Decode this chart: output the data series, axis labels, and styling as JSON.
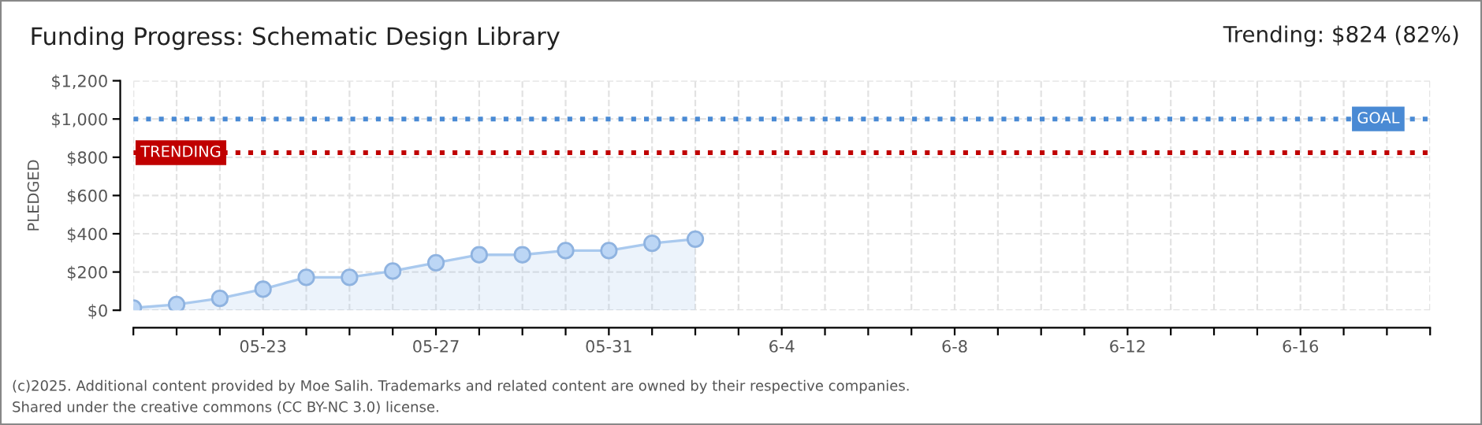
{
  "chart_data": {
    "type": "area",
    "title": "Funding Progress: Schematic Design Library",
    "subtitle": "Trending: $824 (82%)",
    "ylabel": "PLEDGED",
    "annotations": [
      "(c)2025. Additional content provided by Moe Salih. Trademarks and related content are owned by their respective companies.",
      "Shared under the creative commons (CC BY-NC 3.0) license."
    ],
    "x": [
      "2025-05-20",
      "2025-05-21",
      "2025-05-22",
      "2025-05-23",
      "2025-05-24",
      "2025-05-25",
      "2025-05-26",
      "2025-05-27",
      "2025-05-28",
      "2025-05-29",
      "2025-05-30",
      "2025-05-31",
      "2025-06-01",
      "2025-06-02"
    ],
    "series": [
      {
        "color": "#a9c9ee",
        "values": [
          12,
          30,
          62,
          110,
          172,
          172,
          205,
          248,
          290,
          290,
          312,
          312,
          350,
          372
        ]
      }
    ],
    "marker": "circle",
    "xlim": [
      "2025-05-20",
      "2025-06-19"
    ],
    "xticks": [
      {
        "value": "2025-05-20",
        "label": null
      },
      {
        "value": "2025-05-21",
        "label": null
      },
      {
        "value": "2025-05-22",
        "label": null
      },
      {
        "value": "2025-05-23",
        "label": "05-23"
      },
      {
        "value": "2025-05-24",
        "label": null
      },
      {
        "value": "2025-05-25",
        "label": null
      },
      {
        "value": "2025-05-26",
        "label": null
      },
      {
        "value": "2025-05-27",
        "label": "05-27"
      },
      {
        "value": "2025-05-28",
        "label": null
      },
      {
        "value": "2025-05-29",
        "label": null
      },
      {
        "value": "2025-05-30",
        "label": null
      },
      {
        "value": "2025-05-31",
        "label": "05-31"
      },
      {
        "value": "2025-06-01",
        "label": null
      },
      {
        "value": "2025-06-02",
        "label": null
      },
      {
        "value": "2025-06-03",
        "label": null
      },
      {
        "value": "2025-06-04",
        "label": "6-4"
      },
      {
        "value": "2025-06-05",
        "label": null
      },
      {
        "value": "2025-06-06",
        "label": null
      },
      {
        "value": "2025-06-07",
        "label": null
      },
      {
        "value": "2025-06-08",
        "label": "6-8"
      },
      {
        "value": "2025-06-09",
        "label": null
      },
      {
        "value": "2025-06-10",
        "label": null
      },
      {
        "value": "2025-06-11",
        "label": null
      },
      {
        "value": "2025-06-12",
        "label": "6-12"
      },
      {
        "value": "2025-06-13",
        "label": null
      },
      {
        "value": "2025-06-14",
        "label": null
      },
      {
        "value": "2025-06-15",
        "label": null
      },
      {
        "value": "2025-06-16",
        "label": "6-16"
      },
      {
        "value": "2025-06-17",
        "label": null
      },
      {
        "value": "2025-06-18",
        "label": null
      },
      {
        "value": "2025-06-19",
        "label": null
      }
    ],
    "ylim": [
      0,
      1200
    ],
    "yticks": [
      {
        "value": 0,
        "label": "$0"
      },
      {
        "value": 200,
        "label": "$200"
      },
      {
        "value": 400,
        "label": "$400"
      },
      {
        "value": 600,
        "label": "$600"
      },
      {
        "value": 800,
        "label": "$800"
      },
      {
        "value": 1000,
        "label": "$1,000"
      },
      {
        "value": 1200,
        "label": "$1,200"
      }
    ],
    "ref_lines": [
      {
        "axis": "y",
        "value": 1000,
        "label": "GOAL",
        "color": "#4a8ad4",
        "line_style": "dotted"
      },
      {
        "axis": "y",
        "value": 824,
        "label": "TRENDING",
        "color": "#c00000",
        "line_style": "dotted"
      }
    ],
    "grid": true,
    "legend": false
  }
}
